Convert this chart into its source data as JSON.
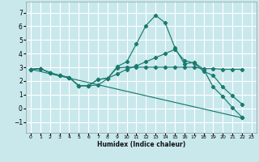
{
  "xlabel": "Humidex (Indice chaleur)",
  "bg_color": "#c8e8ec",
  "grid_color": "#ffffff",
  "line_color": "#1a7a6e",
  "xlim": [
    -0.5,
    23.5
  ],
  "ylim": [
    -1.8,
    7.8
  ],
  "yticks": [
    -1,
    0,
    1,
    2,
    3,
    4,
    5,
    6,
    7
  ],
  "xticks": [
    0,
    1,
    2,
    3,
    4,
    5,
    6,
    7,
    8,
    9,
    10,
    11,
    12,
    13,
    14,
    15,
    16,
    17,
    18,
    19,
    20,
    21,
    22,
    23
  ],
  "series": [
    {
      "x": [
        0,
        1,
        2,
        3,
        4,
        5,
        6,
        7,
        8,
        9,
        10,
        11,
        12,
        13,
        14,
        15,
        16,
        17,
        18,
        19,
        20,
        21,
        22
      ],
      "y": [
        2.85,
        2.9,
        2.6,
        2.4,
        2.25,
        1.65,
        1.65,
        1.7,
        2.15,
        3.05,
        3.4,
        4.7,
        6.05,
        6.8,
        6.25,
        4.45,
        3.25,
        3.35,
        2.85,
        1.55,
        0.85,
        0.05,
        -0.65
      ]
    },
    {
      "x": [
        0,
        1,
        2,
        3,
        4,
        5,
        6,
        7,
        8,
        9,
        10,
        11,
        12,
        13,
        14,
        15,
        16,
        17,
        18,
        19,
        20,
        21,
        22
      ],
      "y": [
        2.85,
        2.9,
        2.6,
        2.4,
        2.25,
        1.65,
        1.65,
        2.1,
        2.2,
        2.95,
        3.0,
        3.0,
        3.0,
        3.0,
        3.0,
        3.0,
        3.0,
        3.0,
        2.9,
        2.9,
        2.85,
        2.85,
        2.85
      ]
    },
    {
      "x": [
        0,
        1,
        2,
        3,
        4,
        5,
        6,
        7,
        8,
        9,
        10,
        11,
        12,
        13,
        14,
        15,
        16,
        17,
        18,
        19,
        20,
        21,
        22
      ],
      "y": [
        2.85,
        2.9,
        2.6,
        2.4,
        2.25,
        1.65,
        1.65,
        2.1,
        2.2,
        2.5,
        2.85,
        3.1,
        3.4,
        3.7,
        4.0,
        4.3,
        3.5,
        3.3,
        2.7,
        2.4,
        1.55,
        0.9,
        0.3
      ]
    },
    {
      "x": [
        0,
        22
      ],
      "y": [
        2.85,
        -0.7
      ]
    }
  ]
}
